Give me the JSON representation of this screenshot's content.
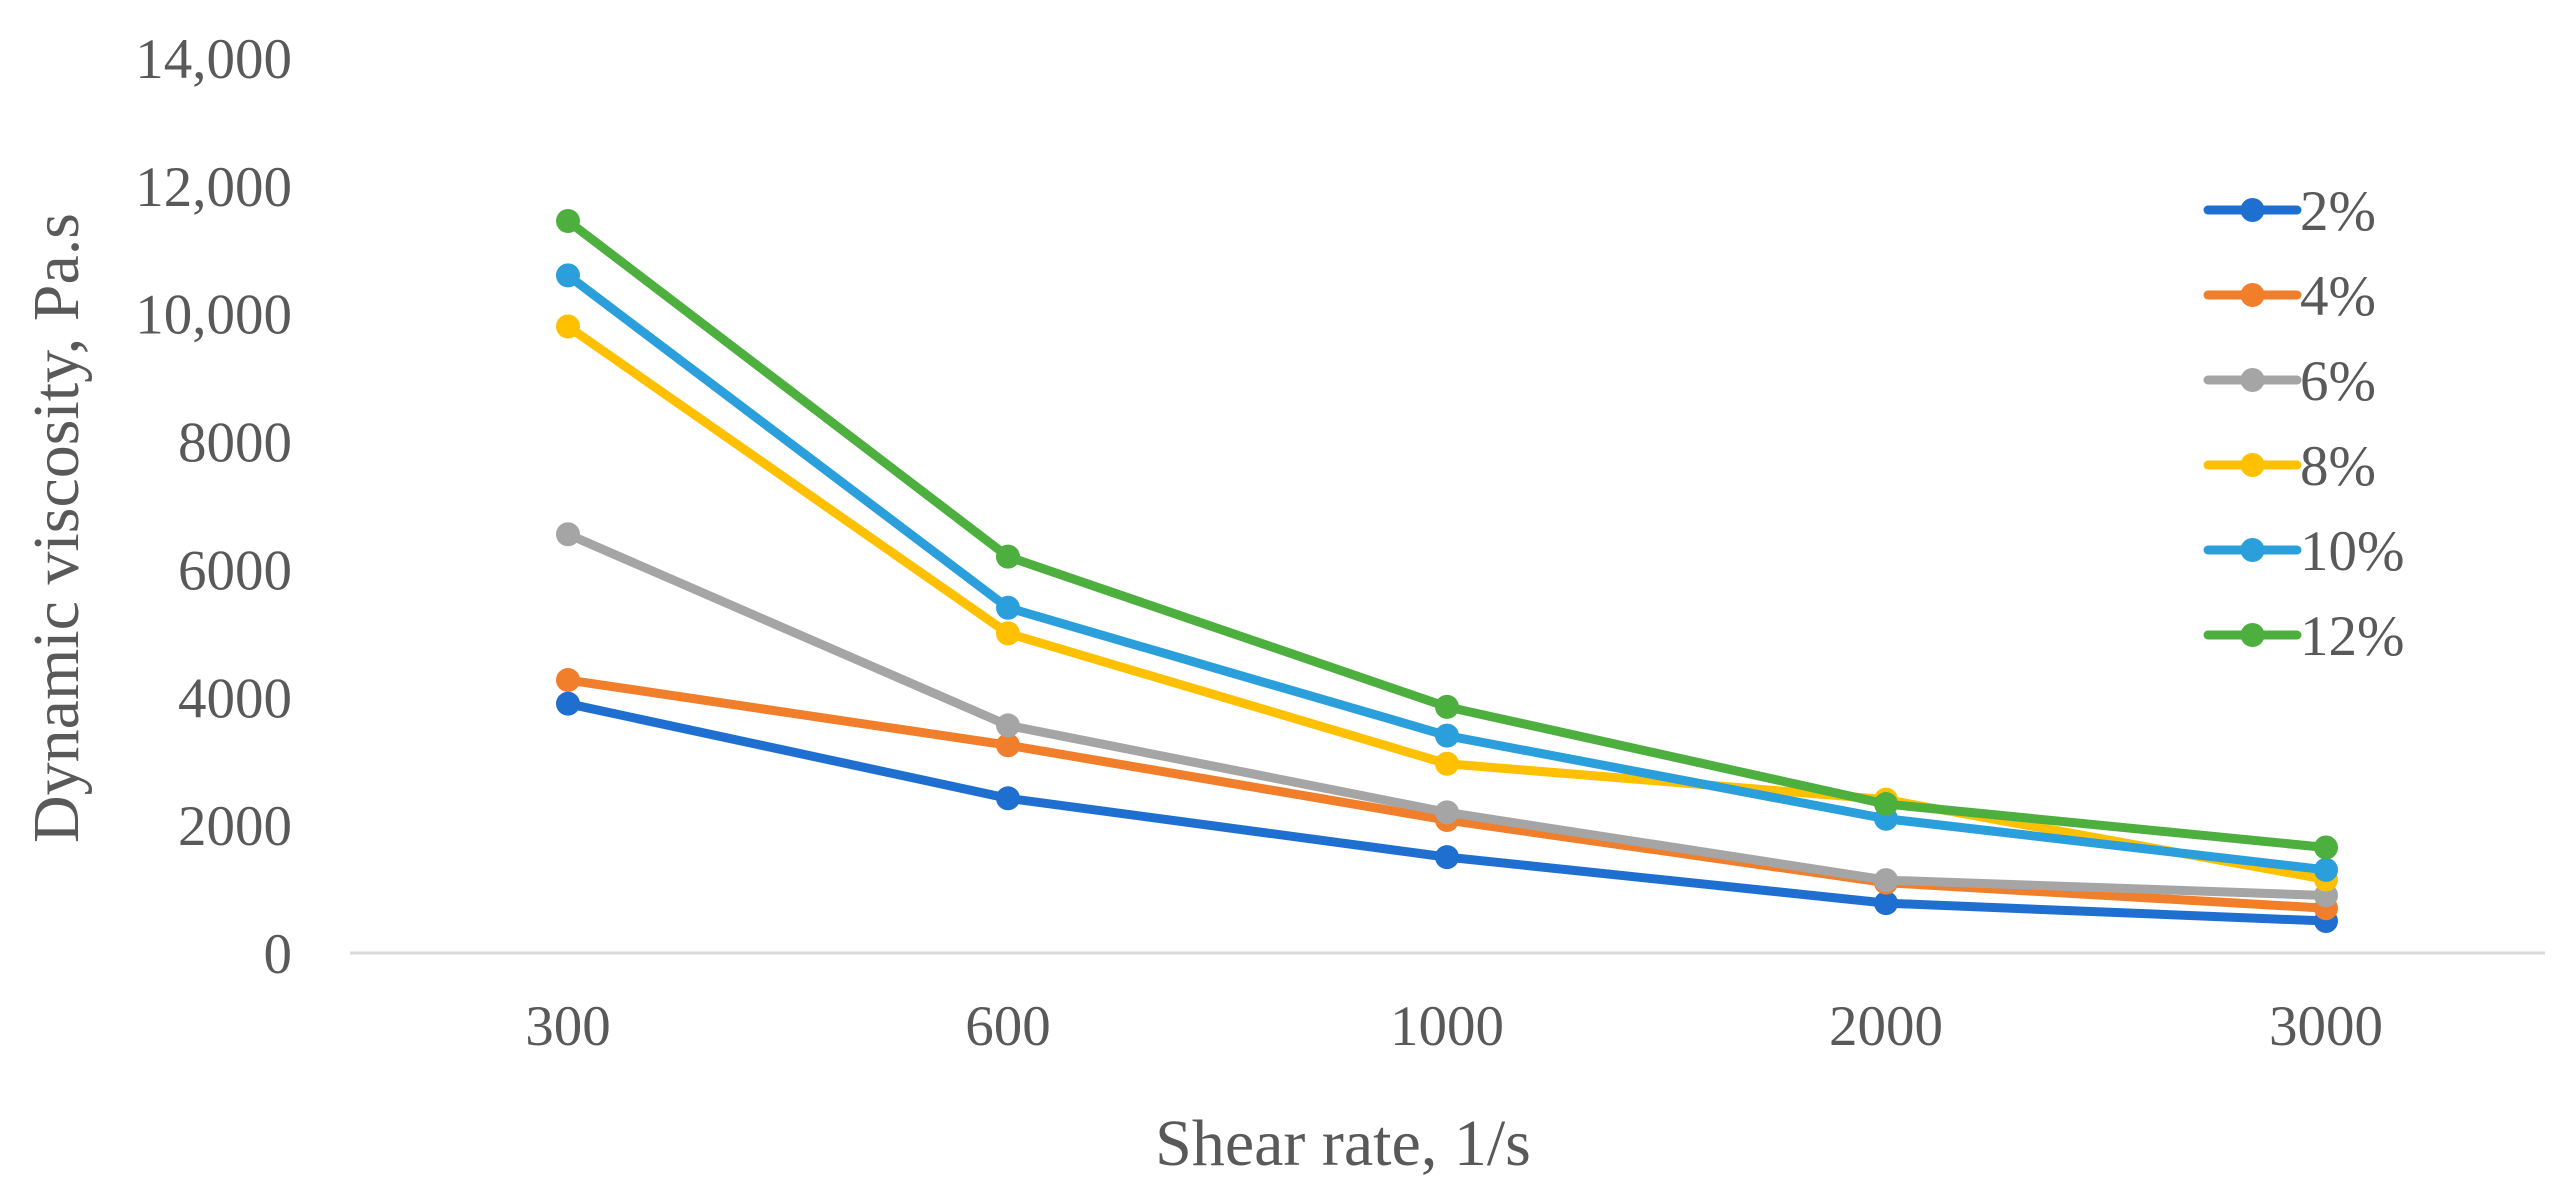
{
  "chart_data": {
    "type": "line",
    "title": "",
    "xlabel": "Shear rate, 1/s",
    "ylabel": "Dynamic viscosity,  Pa.s",
    "categories": [
      "300",
      "600",
      "1000",
      "2000",
      "3000"
    ],
    "ylim": [
      0,
      14000
    ],
    "yticks": [
      0,
      2000,
      4000,
      6000,
      8000,
      10000,
      12000,
      14000
    ],
    "ytick_labels": [
      "0",
      "2000",
      "4000",
      "6000",
      "8000",
      "10,000",
      "12,000",
      "14,000"
    ],
    "grid": false,
    "legend_position": "right",
    "series": [
      {
        "name": "2%",
        "color": "#1F6FD0",
        "values": [
          3900,
          2420,
          1500,
          780,
          500
        ]
      },
      {
        "name": "4%",
        "color": "#F07E2A",
        "values": [
          4270,
          3250,
          2080,
          1100,
          700
        ]
      },
      {
        "name": "6%",
        "color": "#A5A5A5",
        "values": [
          6550,
          3560,
          2200,
          1140,
          900
        ]
      },
      {
        "name": "8%",
        "color": "#FFC000",
        "values": [
          9800,
          5000,
          2960,
          2400,
          1150
        ]
      },
      {
        "name": "10%",
        "color": "#2B9FDB",
        "values": [
          10600,
          5400,
          3400,
          2100,
          1300
        ]
      },
      {
        "name": "12%",
        "color": "#4CAF3E",
        "values": [
          11450,
          6200,
          3850,
          2330,
          1650
        ]
      }
    ]
  }
}
